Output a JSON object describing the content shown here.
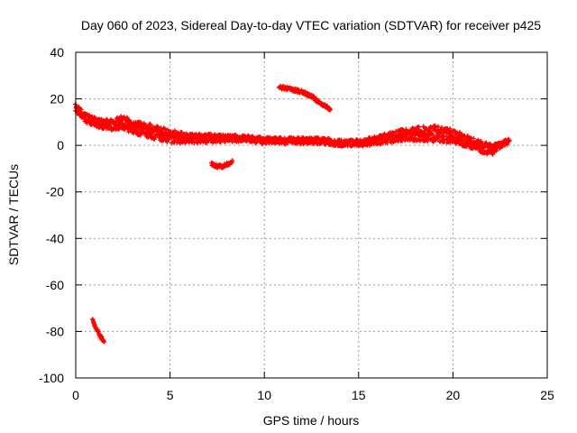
{
  "chart_data": {
    "type": "scatter",
    "title": "Day 060 of 2023, Sidereal Day-to-day VTEC variation (SDTVAR) for receiver p425",
    "xlabel": "GPS time / hours",
    "ylabel": "SDTVAR / TECUs",
    "xlim": [
      0,
      25
    ],
    "ylim": [
      -100,
      40
    ],
    "xticks": [
      0,
      5,
      10,
      15,
      20,
      25
    ],
    "yticks": [
      -100,
      -80,
      -60,
      -40,
      -20,
      0,
      20,
      40
    ],
    "grid": true,
    "legend": "none",
    "marker": "plus",
    "color": "#ff0000",
    "series": [
      {
        "name": "main",
        "x": [
          0,
          0.5,
          1,
          1.5,
          2,
          2.5,
          3,
          3.5,
          4,
          5,
          6,
          7,
          8,
          9,
          10,
          11,
          12,
          13,
          14,
          15,
          16,
          17,
          18,
          19,
          20,
          21,
          22,
          22.5,
          23
        ],
        "y": [
          16,
          12,
          10,
          9,
          9,
          10,
          8,
          7,
          6,
          4,
          3,
          3,
          3,
          3,
          2,
          2,
          2,
          2,
          1,
          1,
          2,
          4,
          5,
          5,
          4,
          1,
          -2,
          0,
          2
        ],
        "spread": [
          2,
          2,
          2,
          2,
          2.5,
          3,
          3,
          3,
          3,
          3,
          2,
          2,
          1.5,
          1.5,
          1.5,
          1.5,
          1.5,
          1.5,
          1.5,
          1.5,
          2,
          2.5,
          3,
          3.5,
          3,
          2.5,
          2.5,
          1.5,
          1
        ]
      },
      {
        "name": "segment-a",
        "x": [
          10.8,
          11.5,
          12,
          12.5,
          13,
          13.5
        ],
        "y": [
          25,
          24,
          23,
          21,
          18,
          15.5
        ],
        "spread": [
          0.7,
          0.7,
          0.7,
          0.7,
          0.7,
          0.7
        ]
      },
      {
        "name": "segment-b",
        "x": [
          7.2,
          7.5,
          7.8,
          8.1,
          8.3
        ],
        "y": [
          -8,
          -9,
          -9,
          -8,
          -6.5
        ],
        "spread": [
          0.7,
          0.7,
          0.7,
          0.7,
          0.7
        ]
      },
      {
        "name": "segment-c",
        "x": [
          0.9,
          1.1,
          1.3,
          1.5
        ],
        "y": [
          -75,
          -79,
          -82,
          -84.5
        ],
        "spread": [
          0.6,
          0.6,
          0.6,
          0.6
        ]
      }
    ]
  }
}
